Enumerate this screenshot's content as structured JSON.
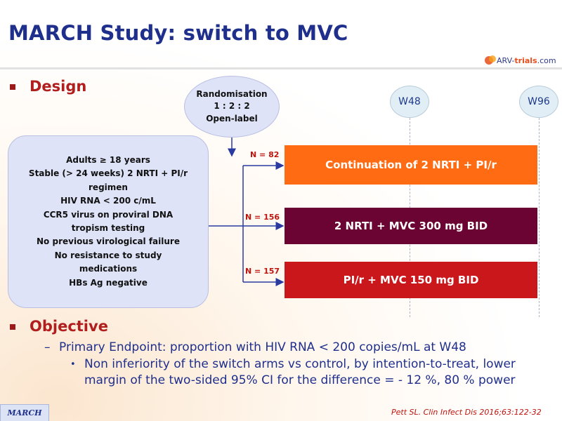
{
  "title": "MARCH Study: switch to MVC",
  "logo": {
    "prefix": "ARV-",
    "name": "trials",
    "suffix": ".com"
  },
  "sections": {
    "design": "Design",
    "objective": "Objective"
  },
  "randomisation": {
    "line1": "Randomisation",
    "line2": "1 : 2 : 2",
    "line3": "Open-label"
  },
  "eligibility": [
    "Adults ≥ 18 years",
    "Stable (> 24 weeks) 2 NRTI + PI/r",
    "regimen",
    "HIV RNA < 200 c/mL",
    "CCR5 virus on proviral DNA",
    "tropism testing",
    "No previous virological failure",
    "No resistance to study",
    "medications",
    "HBs Ag negative"
  ],
  "timepoints": [
    "W48",
    "W96"
  ],
  "arms": [
    {
      "n": "N = 82",
      "label": "Continuation of 2 NRTI + PI/r",
      "color": "#ff6b12"
    },
    {
      "n": "N = 156",
      "label": "2 NRTI + MVC 300 mg BID",
      "color": "#6b0333"
    },
    {
      "n": "N = 157",
      "label": "PI/r + MVC 150 mg BID",
      "color": "#c9171c"
    }
  ],
  "objective": {
    "dash": "–",
    "primary": "Primary Endpoint: proportion with HIV RNA < 200 copies/mL at W48",
    "bullet": "•",
    "detail": "Non inferiority of the switch arms vs control, by intention-to-treat, lower margin of the two-sided 95% CI for the difference = - 12 %, 80 % power"
  },
  "footer": {
    "tag": "MARCH",
    "citation": "Pett SL. Clin Infect Dis 2016;63:122-32"
  },
  "colors": {
    "title": "#1f2f8c",
    "heading": "#b01e1e",
    "connector": "#2a3aa0"
  }
}
